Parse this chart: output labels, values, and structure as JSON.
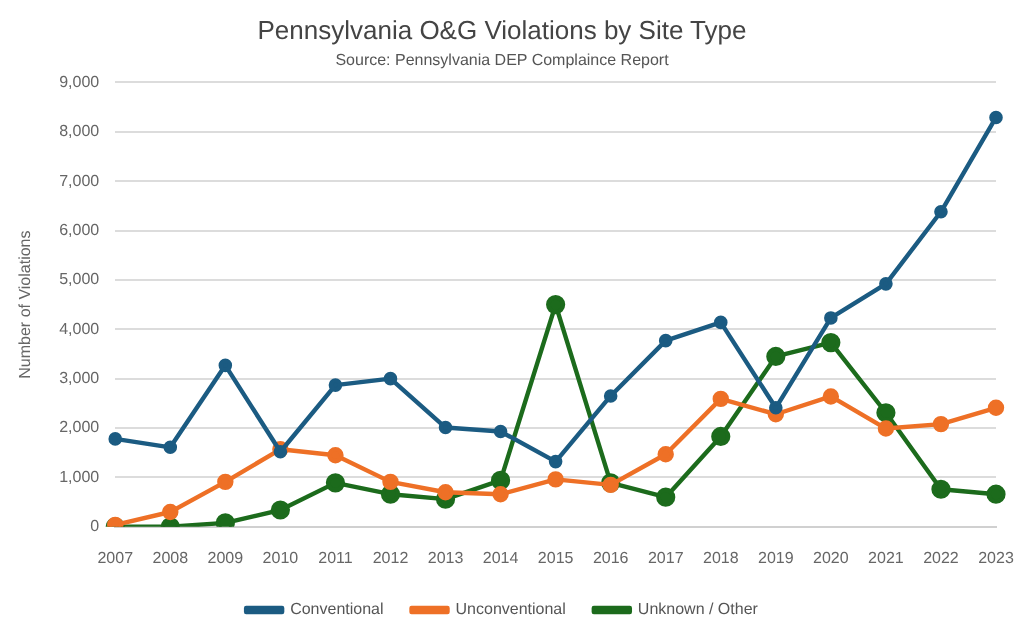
{
  "chart_data": {
    "type": "line",
    "title": "Pennsylvania O&G Violations by Site Type",
    "subtitle": "Source: Pennsylvania DEP Complaince Report",
    "ylabel": "Number of Violations",
    "categories": [
      "2007",
      "2008",
      "2009",
      "2010",
      "2011",
      "2012",
      "2013",
      "2014",
      "2015",
      "2016",
      "2017",
      "2018",
      "2019",
      "2020",
      "2021",
      "2022",
      "2023"
    ],
    "series": [
      {
        "name": "Conventional",
        "color": "#1b5b82",
        "values": [
          1780,
          1610,
          3270,
          1520,
          2870,
          3000,
          2010,
          1930,
          1320,
          2650,
          3770,
          4140,
          2410,
          4230,
          4920,
          6380,
          8290
        ]
      },
      {
        "name": "Unconventional",
        "color": "#ee7026",
        "values": [
          40,
          300,
          910,
          1570,
          1450,
          910,
          700,
          660,
          960,
          850,
          1470,
          2590,
          2280,
          2640,
          1990,
          2080,
          2410
        ]
      },
      {
        "name": "Unknown / Other",
        "color": "#1c6b1c",
        "values": [
          0,
          0,
          80,
          340,
          890,
          660,
          560,
          940,
          4500,
          890,
          600,
          1830,
          3450,
          3730,
          2310,
          760,
          660
        ]
      }
    ],
    "ylim": [
      0,
      9000
    ],
    "yticks": [
      0,
      {
        "value": 1000,
        "label": "1,000"
      },
      {
        "value": 2000,
        "label": "2,000"
      },
      {
        "value": 3000,
        "label": "3,000"
      },
      {
        "value": 4000,
        "label": "4,000"
      },
      {
        "value": 5000,
        "label": "5,000"
      },
      {
        "value": 6000,
        "label": "6,000"
      },
      {
        "value": 7000,
        "label": "7,000"
      },
      {
        "value": 8000,
        "label": "8,000"
      },
      {
        "value": 9000,
        "label": "9,000"
      }
    ],
    "grid": "y",
    "legend": "bottom",
    "marker": "circle",
    "line_style": "solid"
  }
}
